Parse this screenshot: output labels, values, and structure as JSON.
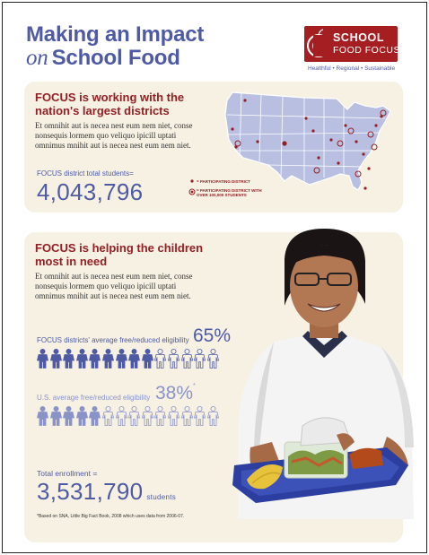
{
  "header": {
    "title_line1": "Making an Impact",
    "title_on": "on",
    "title_line2": "School Food"
  },
  "logo": {
    "line1": "SCHOOL",
    "line2": "FOOD FOCUS",
    "tagline": "Healthful • Regional • Sustainable",
    "color": "#a51f22"
  },
  "section1": {
    "heading_line1": "FOCUS is working with the",
    "heading_line2": "nation's largest districts",
    "body": "Et omnihit aut is necea nest eum nem niet, conse nonsequis lormem quo veliquo ipicill uptati omnimus mnihit aut is necea nest eum nem niet.",
    "stat_label": "FOCUS district total students=",
    "stat_value": "4,043,796",
    "legend_item1": "= PARTICIPATING DISTRICT",
    "legend_item2_line1": "= PARTICIPATING DISTRICT WITH",
    "legend_item2_line2": "OVER 100,000 STUDENTS"
  },
  "section2": {
    "heading_line1": "FOCUS is helping the children",
    "heading_line2": "most in need",
    "body": "Et omnihit aut is necea nest eum nem niet, conse nonsequis lormem quo veliquo ipicill uptati omnimus mnihit aut is necea nest eum nem niet.",
    "focus_label": "FOCUS districts' average free/reduced eligibility",
    "focus_pct": "65%",
    "focus_fraction": 0.65,
    "us_label": "U.S. average free/reduced eligibility",
    "us_pct": "38%",
    "us_mark": "*",
    "us_fraction": 0.38,
    "enroll_label": "Total enrollment =",
    "enroll_value": "3,531,790",
    "enroll_unit": "students",
    "footnote": "*Based on SNA, Little Big Fact Book, 2008 which uses data from 2006-07."
  },
  "colors": {
    "blue": "#4f5aa4",
    "light_blue": "#8a93c8",
    "red": "#922024",
    "cream": "#f6f1e3"
  }
}
